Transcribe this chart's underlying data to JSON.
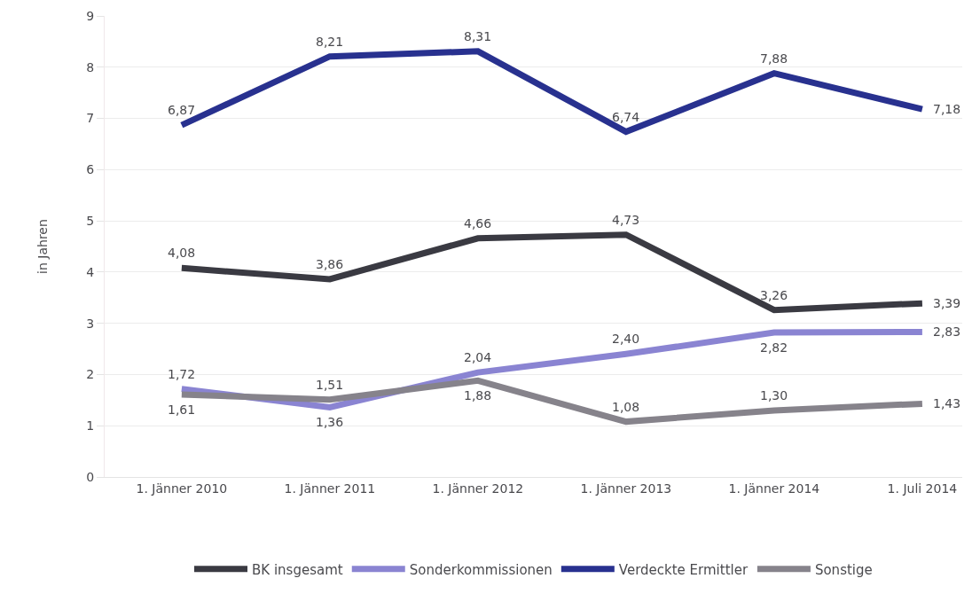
{
  "chart_data": {
    "type": "line",
    "ylabel": "in Jahren",
    "categories": [
      "1. Jänner 2010",
      "1. Jänner 2011",
      "1. Jänner 2012",
      "1. Jänner 2013",
      "1. Jänner 2014",
      "1. Juli 2014"
    ],
    "series": [
      {
        "name": "BK insgesamt",
        "color": "#3a3a42",
        "values": [
          4.08,
          3.86,
          4.66,
          4.73,
          3.26,
          3.39
        ],
        "value_labels": [
          "4,08",
          "3,86",
          "4,66",
          "4,73",
          "3,26",
          "3,39"
        ]
      },
      {
        "name": "Sonderkommissionen",
        "color": "#8a84d2",
        "values": [
          1.72,
          1.36,
          2.04,
          2.4,
          2.82,
          2.83
        ],
        "value_labels": [
          "1,72",
          "1,36",
          "2,04",
          "2,40",
          "2,82",
          "2,83"
        ]
      },
      {
        "name": "Verdeckte Ermittler",
        "color": "#28318f",
        "values": [
          6.87,
          8.21,
          8.31,
          6.74,
          7.88,
          7.18
        ],
        "value_labels": [
          "6,87",
          "8,21",
          "8,31",
          "6,74",
          "7,88",
          "7,18"
        ]
      },
      {
        "name": "Sonstige",
        "color": "#86838b",
        "values": [
          1.61,
          1.51,
          1.88,
          1.08,
          1.3,
          1.43
        ],
        "value_labels": [
          "1,61",
          "1,51",
          "1,88",
          "1,08",
          "1,30",
          "1,43"
        ]
      }
    ],
    "ylim": [
      0,
      9
    ],
    "yticks": [
      0,
      1,
      2,
      3,
      4,
      5,
      6,
      7,
      8,
      9
    ],
    "grid": "y",
    "legend": "bottom",
    "marker": "none",
    "line_style": "solid"
  }
}
